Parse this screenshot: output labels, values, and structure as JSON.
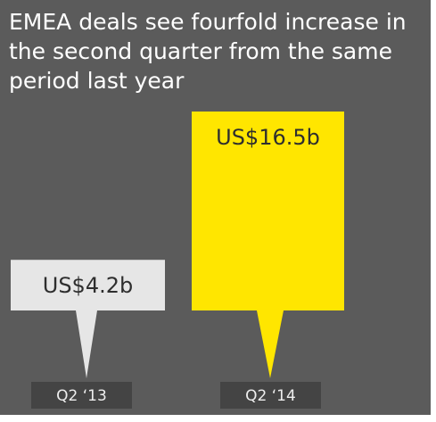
{
  "chart_data": {
    "type": "bar",
    "title": "EMEA deals see fourfold increase in the second quarter from the same period last year",
    "categories": [
      "Q2 ‘13",
      "Q2 ‘14"
    ],
    "series": [
      {
        "colors": [
          "#e6e6e6",
          "#ffe600"
        ],
        "values": [
          4.2,
          16.5
        ],
        "value_labels": [
          "US$4.2b",
          "US$16.5b"
        ]
      }
    ]
  }
}
